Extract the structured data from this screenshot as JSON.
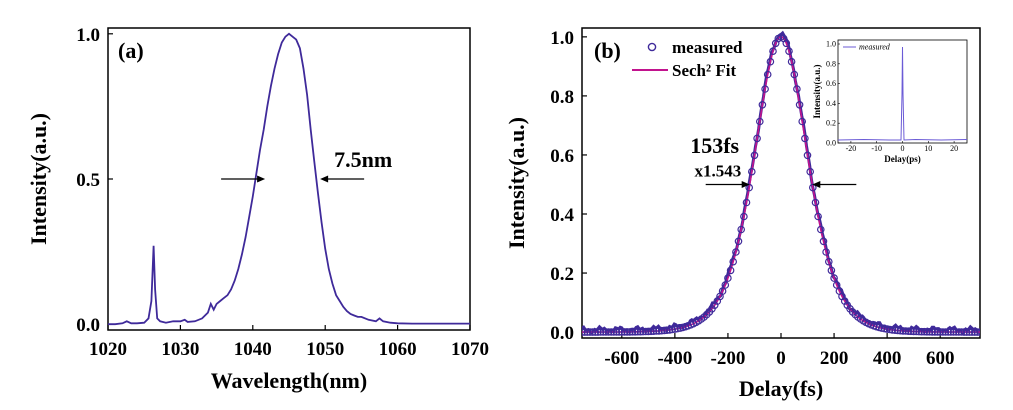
{
  "chart_data": [
    {
      "type": "line",
      "panel_label": "(a)",
      "xlabel": "Wavelength(nm)",
      "ylabel": "Intensity(a.u.)",
      "xlim": [
        1020,
        1070
      ],
      "ylim": [
        -0.02,
        1.02
      ],
      "xticks": [
        1020,
        1030,
        1040,
        1050,
        1060,
        1070
      ],
      "xtick_labels": [
        "1020",
        "1030",
        "1040",
        "1050",
        "1060",
        "1070"
      ],
      "yticks": [
        0.0,
        0.5,
        1.0
      ],
      "ytick_labels": [
        "0.0",
        "0.5",
        "1.0"
      ],
      "line_color": "#3f2a9a",
      "annotation": "7.5nm",
      "series": [
        {
          "x": [
            1020,
            1021,
            1022,
            1022.6,
            1023.2,
            1024,
            1025,
            1025.6,
            1026,
            1026.3,
            1026.5,
            1026.8,
            1027.2,
            1028,
            1029,
            1030,
            1030.6,
            1031,
            1032,
            1033,
            1033.8,
            1034.2,
            1034.6,
            1035,
            1035.5,
            1036,
            1036.5,
            1037,
            1037.5,
            1038,
            1038.5,
            1039,
            1039.5,
            1040,
            1040.5,
            1041,
            1041.5,
            1042,
            1042.5,
            1043,
            1043.5,
            1044,
            1044.5,
            1045,
            1045.5,
            1046,
            1046.5,
            1047,
            1047.5,
            1048,
            1048.5,
            1049,
            1049.5,
            1050,
            1050.5,
            1051,
            1051.5,
            1052,
            1052.5,
            1053,
            1053.5,
            1054,
            1054.5,
            1055,
            1056,
            1057,
            1057.5,
            1058,
            1059,
            1060,
            1062,
            1065,
            1068,
            1070
          ],
          "y": [
            0.0,
            0.0,
            0.003,
            0.01,
            0.003,
            0.003,
            0.005,
            0.02,
            0.08,
            0.27,
            0.12,
            0.02,
            0.01,
            0.005,
            0.01,
            0.01,
            0.015,
            0.008,
            0.01,
            0.02,
            0.04,
            0.07,
            0.05,
            0.07,
            0.08,
            0.09,
            0.1,
            0.12,
            0.15,
            0.19,
            0.24,
            0.3,
            0.37,
            0.44,
            0.52,
            0.6,
            0.67,
            0.75,
            0.82,
            0.88,
            0.93,
            0.97,
            0.99,
            1.0,
            0.99,
            0.98,
            0.95,
            0.88,
            0.79,
            0.67,
            0.56,
            0.45,
            0.35,
            0.26,
            0.19,
            0.14,
            0.1,
            0.08,
            0.06,
            0.045,
            0.035,
            0.03,
            0.025,
            0.025,
            0.015,
            0.01,
            0.02,
            0.01,
            0.005,
            0.003,
            0.002,
            0.002,
            0.002,
            0.002
          ]
        }
      ]
    },
    {
      "type": "scatter",
      "panel_label": "(b)",
      "xlabel": "Delay(fs)",
      "ylabel": "Intensity(a.u.)",
      "xlim": [
        -750,
        750
      ],
      "ylim": [
        -0.02,
        1.03
      ],
      "xticks": [
        -600,
        -400,
        -200,
        0,
        200,
        400,
        600
      ],
      "xtick_labels": [
        "-600",
        "-400",
        "-200",
        "0",
        "200",
        "400",
        "600"
      ],
      "yticks": [
        0.0,
        0.2,
        0.4,
        0.6,
        0.8,
        1.0
      ],
      "ytick_labels": [
        "0.0",
        "0.2",
        "0.4",
        "0.6",
        "0.8",
        "1.0"
      ],
      "annotations": [
        "153fs",
        "x1.543"
      ],
      "series": [
        {
          "name": "measured",
          "marker": "open-circle",
          "color": "#3f2a9a",
          "x_range": [
            -750,
            750
          ],
          "x_step": 10,
          "fwhm_fs": 236,
          "peak": 1.0
        },
        {
          "name": "Sech² Fit",
          "marker": "line",
          "color": "#c2138e",
          "x_range": [
            -750,
            750
          ],
          "x_step": 5,
          "fwhm_fs": 236,
          "peak": 1.0
        }
      ],
      "legend": {
        "position": "top-left",
        "entries": [
          "measured",
          "Sech² Fit"
        ]
      },
      "inset": {
        "type": "line",
        "xlabel": "Delay(ps)",
        "ylabel": "Intensity(a.u.)",
        "xlim": [
          -25,
          25
        ],
        "ylim": [
          0,
          1.0
        ],
        "xtick_labels": [
          "-20",
          "-10",
          "0",
          "10",
          "20"
        ],
        "ytick_labels": [
          "0.0",
          "0.2",
          "0.4",
          "0.6",
          "0.8",
          "1.0"
        ],
        "legend": "measured",
        "series_color": "#6b5bd6",
        "peak_x": 0,
        "peak_y": 0.97
      }
    }
  ]
}
